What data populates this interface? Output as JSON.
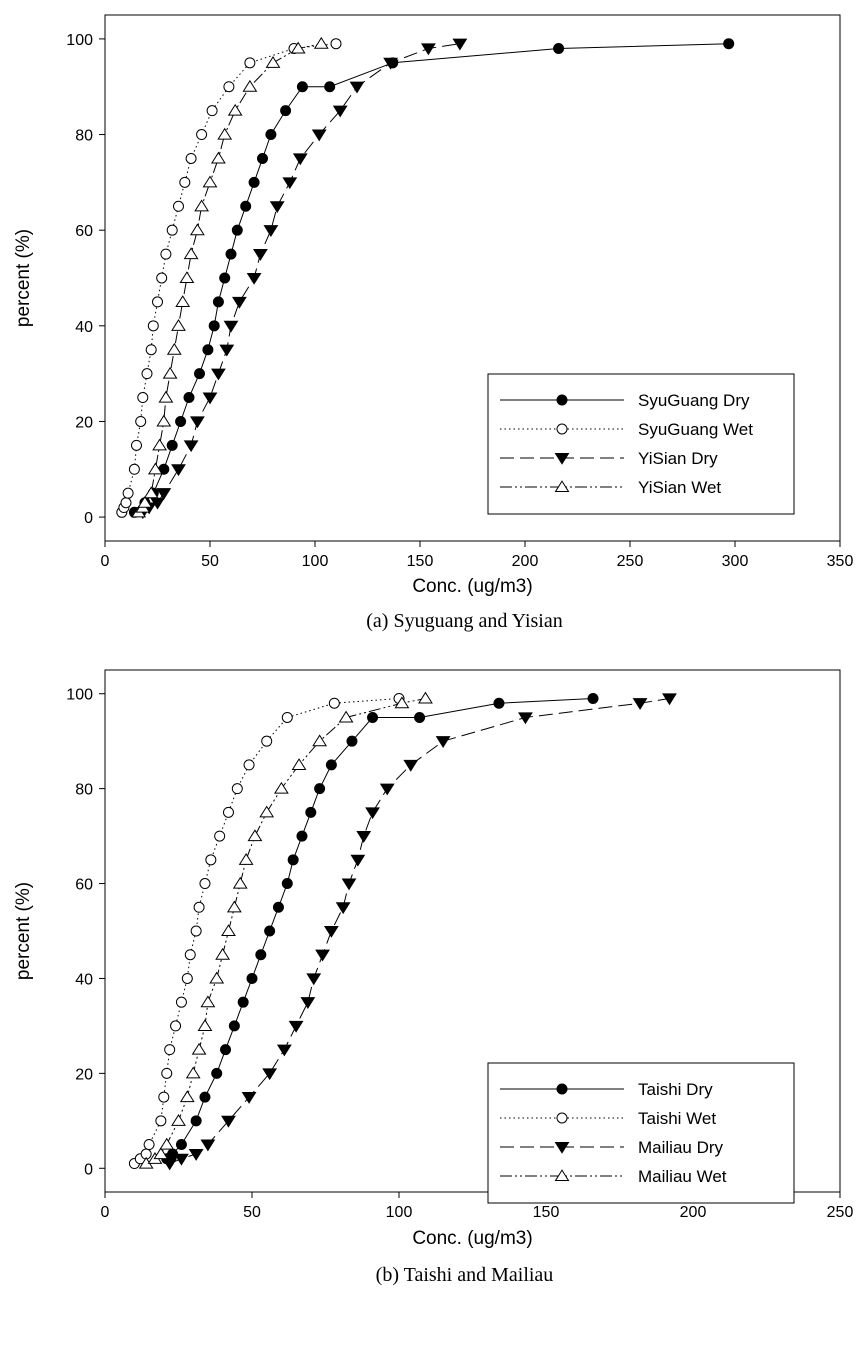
{
  "chart_data": [
    {
      "type": "line",
      "caption": "(a) Syuguang and Yisian",
      "xlabel": "Conc. (ug/m3)",
      "ylabel": "percent (%)",
      "xlim": [
        0,
        350
      ],
      "ylim": [
        -5,
        105
      ],
      "xticks": [
        0,
        50,
        100,
        150,
        200,
        250,
        300,
        350
      ],
      "yticks": [
        0,
        20,
        40,
        60,
        80,
        100
      ],
      "legend_position": "lower-right",
      "series": [
        {
          "name": "SyuGuang Dry",
          "marker": "filled-circle",
          "line": "solid",
          "points": [
            [
              14,
              1
            ],
            [
              19,
              3
            ],
            [
              23,
              5
            ],
            [
              28,
              10
            ],
            [
              32,
              15
            ],
            [
              36,
              20
            ],
            [
              40,
              25
            ],
            [
              45,
              30
            ],
            [
              49,
              35
            ],
            [
              52,
              40
            ],
            [
              54,
              45
            ],
            [
              57,
              50
            ],
            [
              60,
              55
            ],
            [
              63,
              60
            ],
            [
              67,
              65
            ],
            [
              71,
              70
            ],
            [
              75,
              75
            ],
            [
              79,
              80
            ],
            [
              86,
              85
            ],
            [
              94,
              90
            ],
            [
              107,
              90
            ],
            [
              137,
              95
            ],
            [
              216,
              98
            ],
            [
              297,
              99
            ]
          ]
        },
        {
          "name": "SyuGuang Wet",
          "marker": "open-circle",
          "line": "dotted",
          "points": [
            [
              8,
              1
            ],
            [
              9,
              2
            ],
            [
              10,
              3
            ],
            [
              11,
              5
            ],
            [
              14,
              10
            ],
            [
              15,
              15
            ],
            [
              17,
              20
            ],
            [
              18,
              25
            ],
            [
              20,
              30
            ],
            [
              22,
              35
            ],
            [
              23,
              40
            ],
            [
              25,
              45
            ],
            [
              27,
              50
            ],
            [
              29,
              55
            ],
            [
              32,
              60
            ],
            [
              35,
              65
            ],
            [
              38,
              70
            ],
            [
              41,
              75
            ],
            [
              46,
              80
            ],
            [
              51,
              85
            ],
            [
              59,
              90
            ],
            [
              69,
              95
            ],
            [
              90,
              98
            ],
            [
              110,
              99
            ]
          ]
        },
        {
          "name": "YiSian Dry",
          "marker": "filled-triangle-down",
          "line": "dashed",
          "points": [
            [
              18,
              1
            ],
            [
              21,
              2
            ],
            [
              25,
              3
            ],
            [
              28,
              5
            ],
            [
              35,
              10
            ],
            [
              41,
              15
            ],
            [
              44,
              20
            ],
            [
              50,
              25
            ],
            [
              54,
              30
            ],
            [
              58,
              35
            ],
            [
              60,
              40
            ],
            [
              64,
              45
            ],
            [
              71,
              50
            ],
            [
              74,
              55
            ],
            [
              79,
              60
            ],
            [
              82,
              65
            ],
            [
              88,
              70
            ],
            [
              93,
              75
            ],
            [
              102,
              80
            ],
            [
              112,
              85
            ],
            [
              120,
              90
            ],
            [
              136,
              95
            ],
            [
              154,
              98
            ],
            [
              169,
              99
            ]
          ]
        },
        {
          "name": "YiSian Wet",
          "marker": "open-triangle-up",
          "line": "dash-dot-dot",
          "points": [
            [
              16,
              1
            ],
            [
              18,
              2
            ],
            [
              19,
              3
            ],
            [
              22,
              5
            ],
            [
              24,
              10
            ],
            [
              26,
              15
            ],
            [
              28,
              20
            ],
            [
              29,
              25
            ],
            [
              31,
              30
            ],
            [
              33,
              35
            ],
            [
              35,
              40
            ],
            [
              37,
              45
            ],
            [
              39,
              50
            ],
            [
              41,
              55
            ],
            [
              44,
              60
            ],
            [
              46,
              65
            ],
            [
              50,
              70
            ],
            [
              54,
              75
            ],
            [
              57,
              80
            ],
            [
              62,
              85
            ],
            [
              69,
              90
            ],
            [
              80,
              95
            ],
            [
              92,
              98
            ],
            [
              103,
              99
            ]
          ]
        }
      ]
    },
    {
      "type": "line",
      "caption": "(b) Taishi and Mailiau",
      "xlabel": "Conc. (ug/m3)",
      "ylabel": "percent (%)",
      "xlim": [
        0,
        250
      ],
      "ylim": [
        -5,
        105
      ],
      "xticks": [
        0,
        50,
        100,
        150,
        200,
        250
      ],
      "yticks": [
        0,
        20,
        40,
        60,
        80,
        100
      ],
      "legend_position": "lower-right",
      "series": [
        {
          "name": "Taishi Dry",
          "marker": "filled-circle",
          "line": "solid",
          "points": [
            [
              21,
              2
            ],
            [
              23,
              3
            ],
            [
              26,
              5
            ],
            [
              31,
              10
            ],
            [
              34,
              15
            ],
            [
              38,
              20
            ],
            [
              41,
              25
            ],
            [
              44,
              30
            ],
            [
              47,
              35
            ],
            [
              50,
              40
            ],
            [
              53,
              45
            ],
            [
              56,
              50
            ],
            [
              59,
              55
            ],
            [
              62,
              60
            ],
            [
              64,
              65
            ],
            [
              67,
              70
            ],
            [
              70,
              75
            ],
            [
              73,
              80
            ],
            [
              77,
              85
            ],
            [
              84,
              90
            ],
            [
              91,
              95
            ],
            [
              107,
              95
            ],
            [
              134,
              98
            ],
            [
              166,
              99
            ]
          ]
        },
        {
          "name": "Taishi Wet",
          "marker": "open-circle",
          "line": "dotted",
          "points": [
            [
              10,
              1
            ],
            [
              12,
              2
            ],
            [
              14,
              3
            ],
            [
              15,
              5
            ],
            [
              19,
              10
            ],
            [
              20,
              15
            ],
            [
              21,
              20
            ],
            [
              22,
              25
            ],
            [
              24,
              30
            ],
            [
              26,
              35
            ],
            [
              28,
              40
            ],
            [
              29,
              45
            ],
            [
              31,
              50
            ],
            [
              32,
              55
            ],
            [
              34,
              60
            ],
            [
              36,
              65
            ],
            [
              39,
              70
            ],
            [
              42,
              75
            ],
            [
              45,
              80
            ],
            [
              49,
              85
            ],
            [
              55,
              90
            ],
            [
              62,
              95
            ],
            [
              78,
              98
            ],
            [
              100,
              99
            ]
          ]
        },
        {
          "name": "Mailiau Dry",
          "marker": "filled-triangle-down",
          "line": "dashed",
          "points": [
            [
              22,
              1
            ],
            [
              26,
              2
            ],
            [
              31,
              3
            ],
            [
              35,
              5
            ],
            [
              42,
              10
            ],
            [
              49,
              15
            ],
            [
              56,
              20
            ],
            [
              61,
              25
            ],
            [
              65,
              30
            ],
            [
              69,
              35
            ],
            [
              71,
              40
            ],
            [
              74,
              45
            ],
            [
              77,
              50
            ],
            [
              81,
              55
            ],
            [
              83,
              60
            ],
            [
              86,
              65
            ],
            [
              88,
              70
            ],
            [
              91,
              75
            ],
            [
              96,
              80
            ],
            [
              104,
              85
            ],
            [
              115,
              90
            ],
            [
              143,
              95
            ],
            [
              182,
              98
            ],
            [
              192,
              99
            ]
          ]
        },
        {
          "name": "Mailiau Wet",
          "marker": "open-triangle-up",
          "line": "dash-dot-dot",
          "points": [
            [
              14,
              1
            ],
            [
              17,
              2
            ],
            [
              19,
              3
            ],
            [
              21,
              5
            ],
            [
              25,
              10
            ],
            [
              28,
              15
            ],
            [
              30,
              20
            ],
            [
              32,
              25
            ],
            [
              34,
              30
            ],
            [
              35,
              35
            ],
            [
              38,
              40
            ],
            [
              40,
              45
            ],
            [
              42,
              50
            ],
            [
              44,
              55
            ],
            [
              46,
              60
            ],
            [
              48,
              65
            ],
            [
              51,
              70
            ],
            [
              55,
              75
            ],
            [
              60,
              80
            ],
            [
              66,
              85
            ],
            [
              73,
              90
            ],
            [
              82,
              95
            ],
            [
              101,
              98
            ],
            [
              109,
              99
            ]
          ]
        }
      ]
    }
  ]
}
